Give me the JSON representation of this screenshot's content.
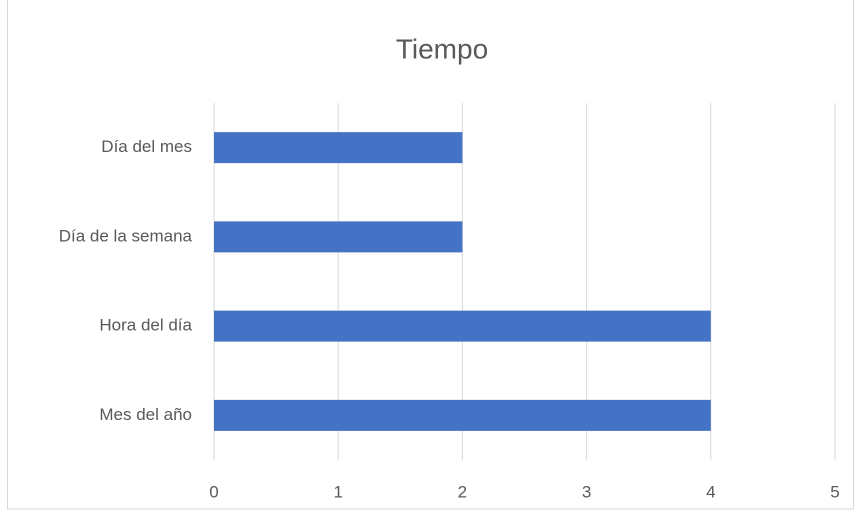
{
  "chart_data": {
    "type": "bar",
    "orientation": "horizontal",
    "title": "Tiempo",
    "categories": [
      "Día del mes",
      "Día de la semana",
      "Hora del día",
      "Mes del año"
    ],
    "values": [
      2,
      2,
      4,
      4
    ],
    "color": "#4472c4",
    "xlim": [
      0,
      5
    ],
    "xticks": [
      0,
      1,
      2,
      3,
      4,
      5
    ],
    "grid": true
  }
}
